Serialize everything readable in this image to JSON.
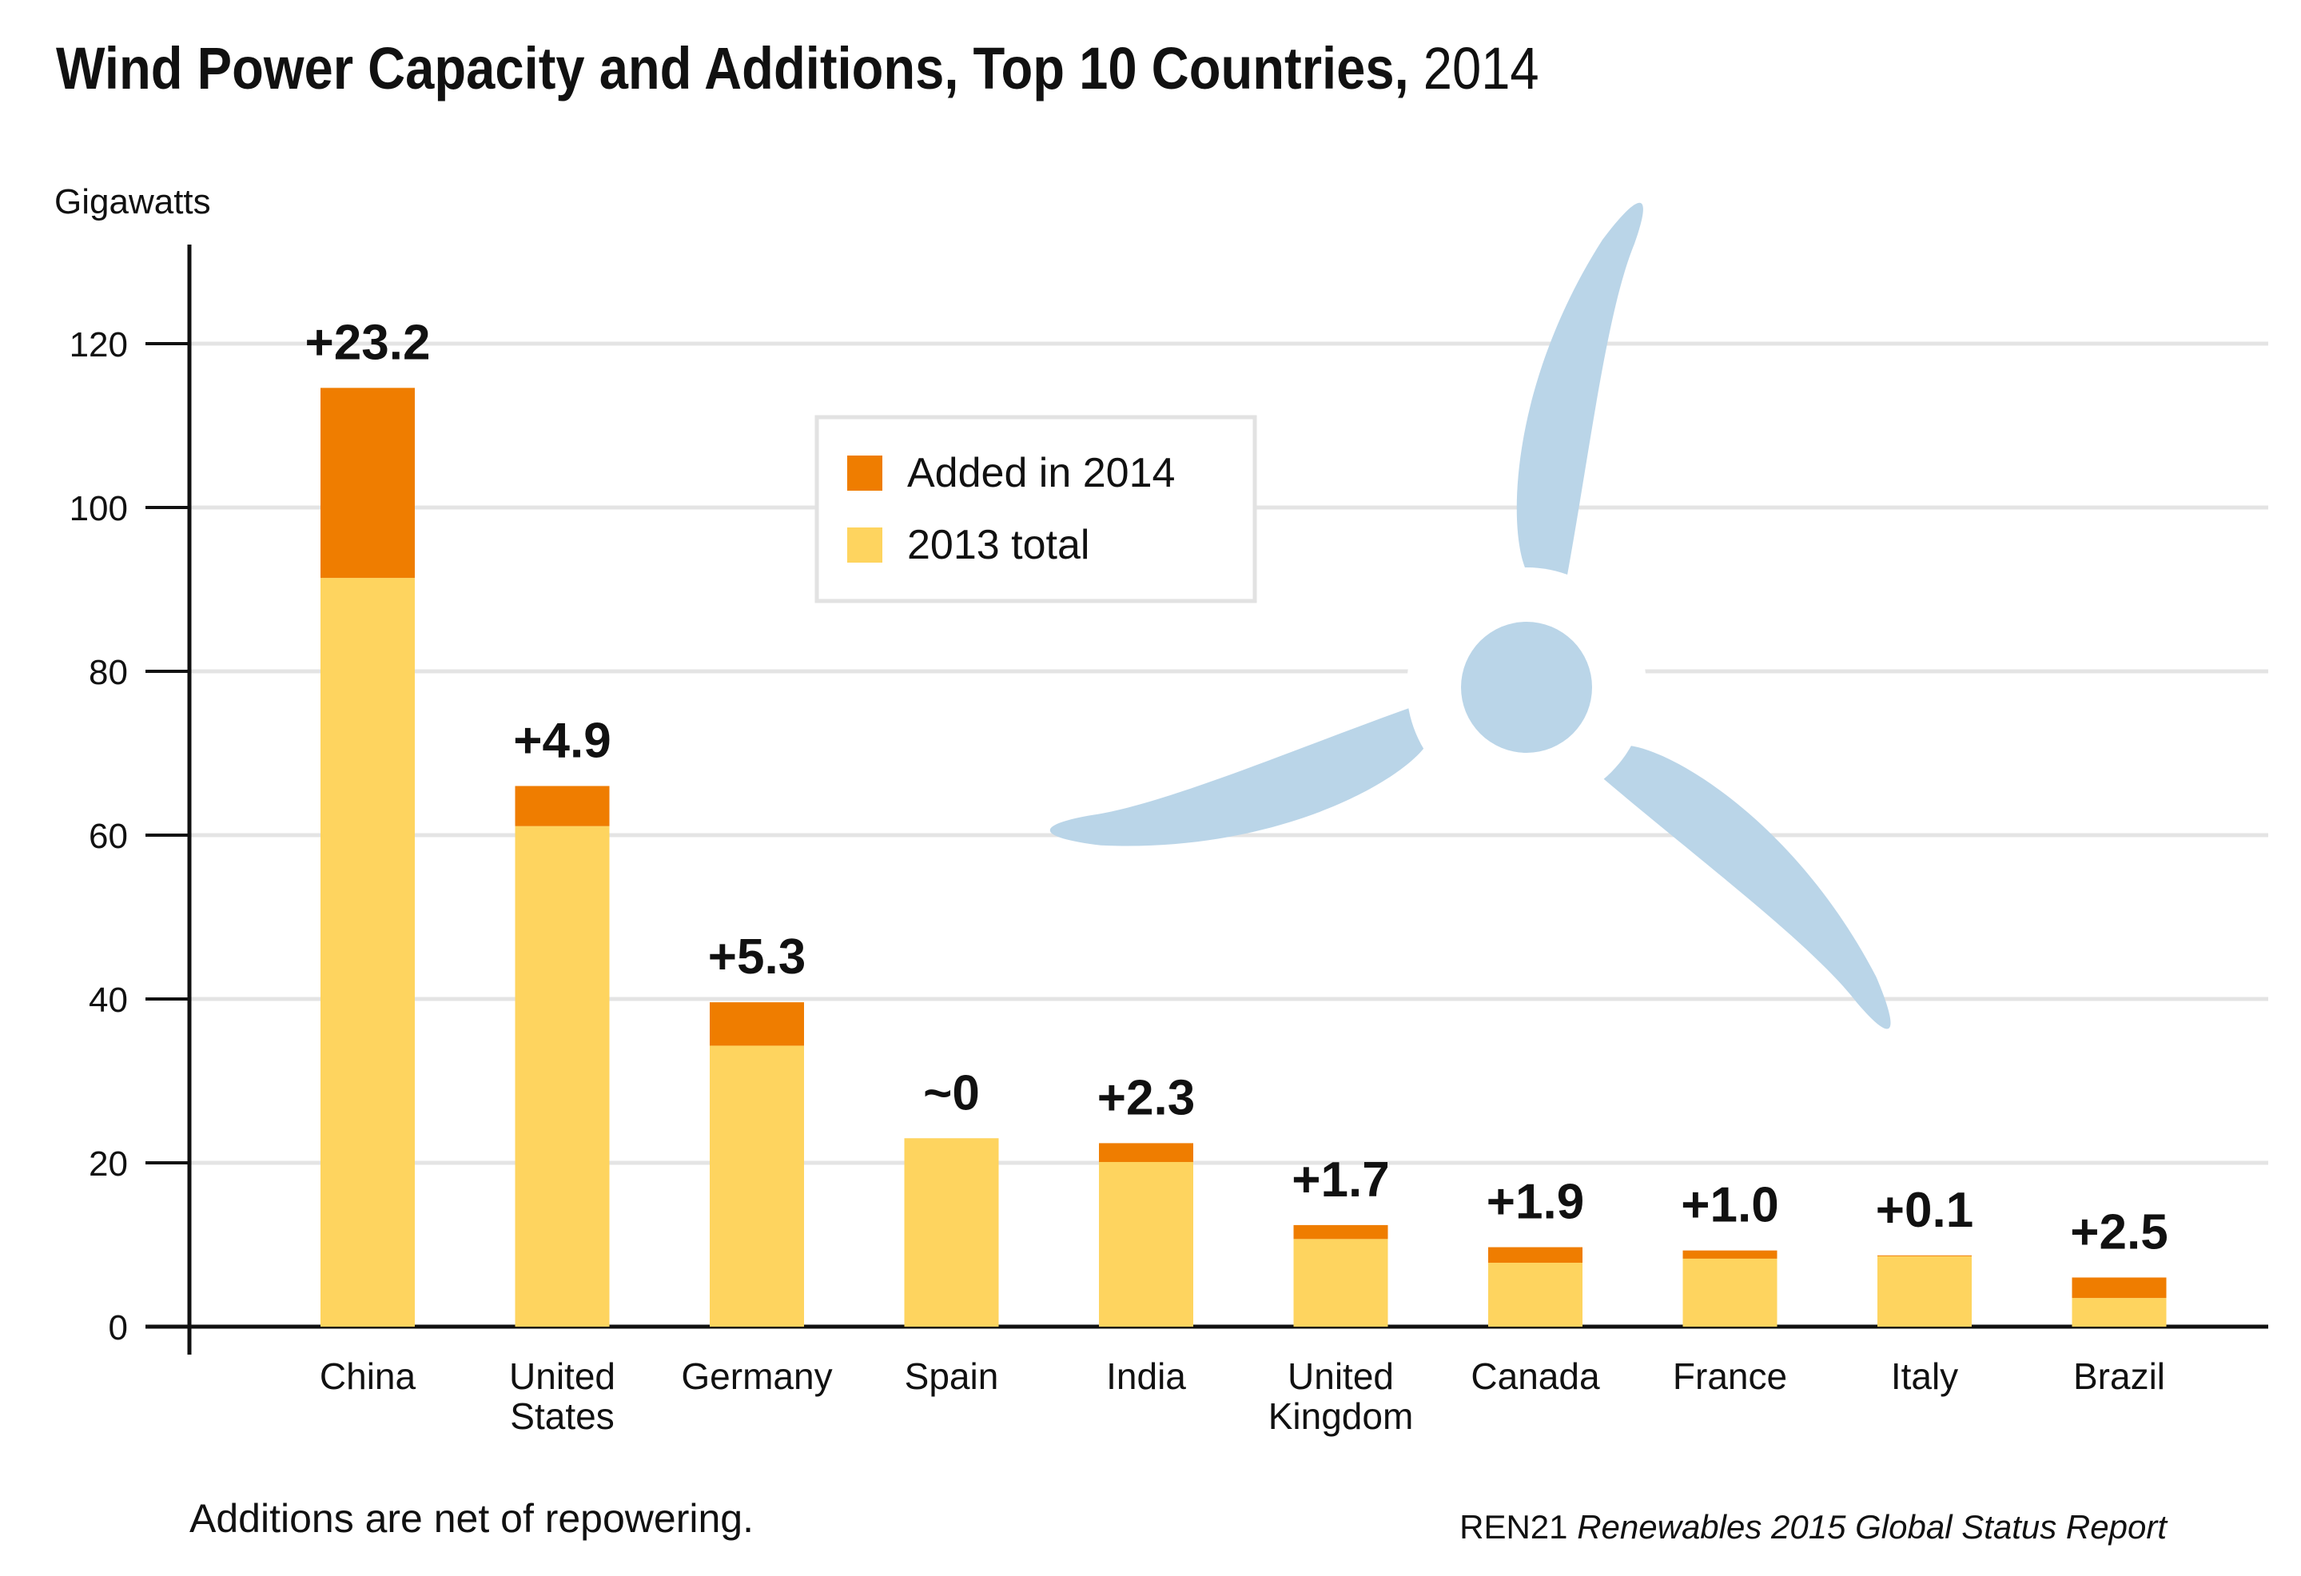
{
  "title": {
    "main": "Wind Power Capacity and Additions, Top 10 Countries,",
    "year": "2014"
  },
  "footnote": "Additions are net of repowering.",
  "source": {
    "org": "REN21",
    "publication": "Renewables 2015 Global Status Report"
  },
  "colors": {
    "added": "#EF7D00",
    "total_2013": "#FED45F",
    "blade": "#BAD5E8",
    "grid": "#E4E4E4",
    "axis": "#111111"
  },
  "chart_data": {
    "type": "bar",
    "stacked": true,
    "ylabel": "Gigawatts",
    "ylim": [
      0,
      130
    ],
    "yticks": [
      0,
      20,
      40,
      60,
      80,
      100,
      120
    ],
    "grid": true,
    "legend_position": "top-center",
    "categories": [
      [
        "China"
      ],
      [
        "United",
        "States"
      ],
      [
        "Germany"
      ],
      [
        "Spain"
      ],
      [
        "India"
      ],
      [
        "United",
        "Kingdom"
      ],
      [
        "Canada"
      ],
      [
        "France"
      ],
      [
        "Italy"
      ],
      [
        "Brazil"
      ]
    ],
    "series": [
      {
        "name": "2013 total",
        "values": [
          91.4,
          61.1,
          34.3,
          23.0,
          20.1,
          10.7,
          7.8,
          8.3,
          8.6,
          3.5
        ]
      },
      {
        "name": "Added in 2014",
        "values": [
          23.2,
          4.9,
          5.3,
          0,
          2.3,
          1.7,
          1.9,
          1.0,
          0.1,
          2.5
        ]
      }
    ],
    "data_labels": [
      "+23.2",
      "+4.9",
      "+5.3",
      "~0",
      "+2.3",
      "+1.7",
      "+1.9",
      "+1.0",
      "+0.1",
      "+2.5"
    ]
  }
}
